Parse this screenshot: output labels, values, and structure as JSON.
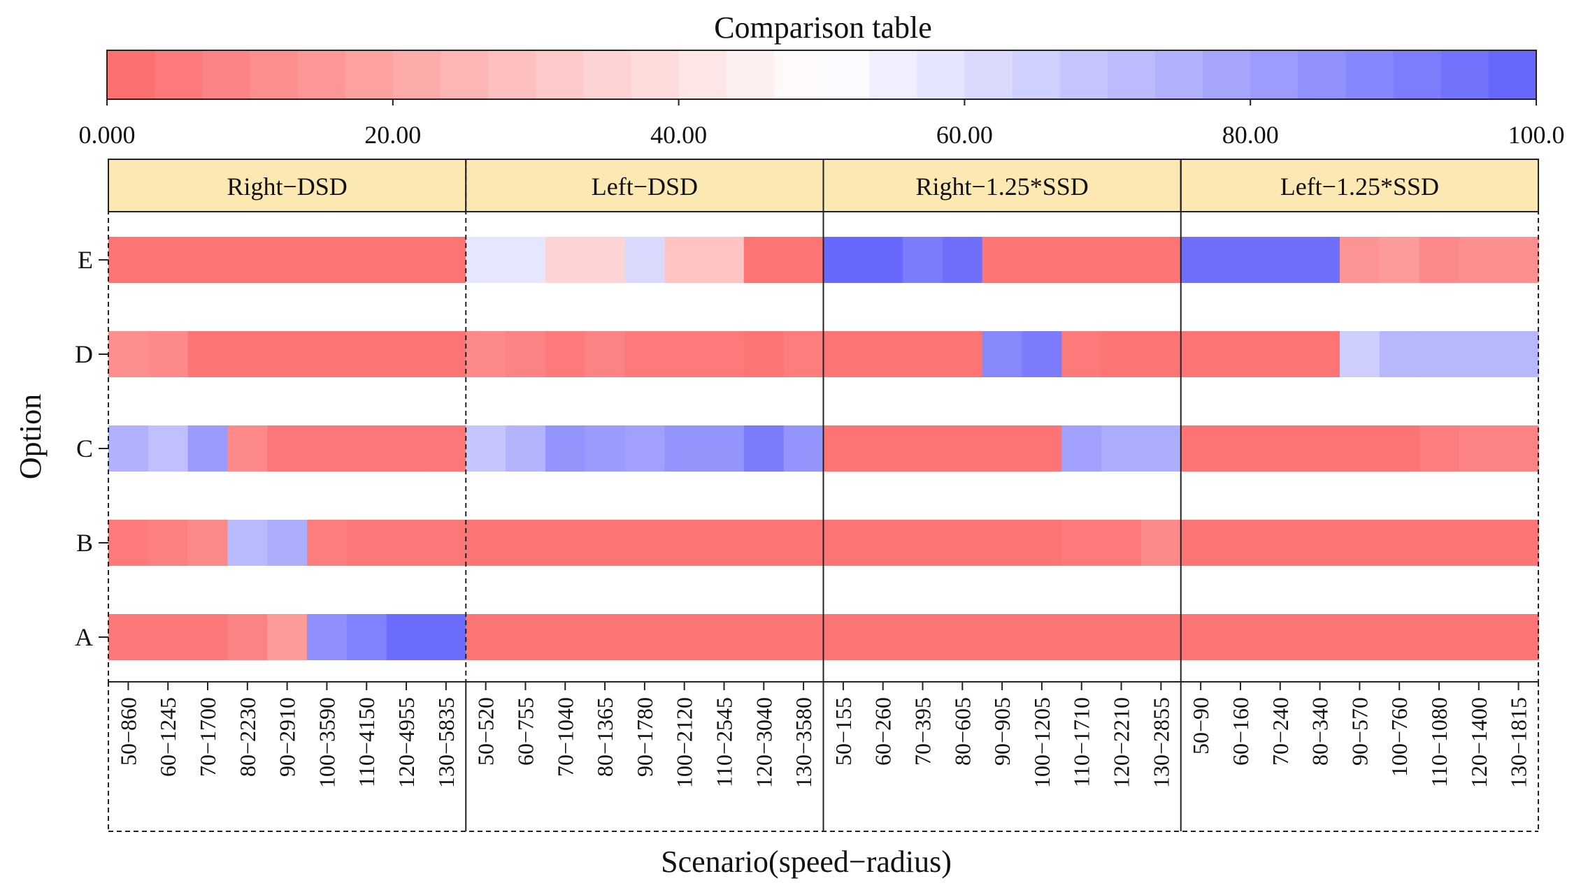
{
  "chart_data": {
    "type": "heatmap",
    "title": "Comparison table",
    "xlabel": "Scenario(speed−radius)",
    "ylabel": "Option",
    "colorbar": {
      "min": 0,
      "max": 100,
      "tick_values": [
        0,
        20,
        40,
        60,
        80,
        100
      ],
      "tick_labels": [
        "0.000",
        "20.00",
        "40.00",
        "60.00",
        "80.00",
        "100.0"
      ],
      "colors": {
        "low": "#fc6b6b",
        "mid": "#ffffff",
        "high": "#6262fc"
      },
      "steps": 30
    },
    "options": [
      "A",
      "B",
      "C",
      "D",
      "E"
    ],
    "panels": [
      {
        "name": "Right−DSD",
        "scenarios": [
          "50−860",
          "60−1245",
          "70−1700",
          "80−2230",
          "90−2910",
          "100−3590",
          "110−4150",
          "120−4955",
          "130−5835"
        ],
        "values": {
          "E": [
            3,
            3,
            3,
            3,
            3,
            3,
            3,
            3,
            3
          ],
          "D": [
            12,
            10,
            3,
            3,
            3,
            3,
            3,
            3,
            3
          ],
          "C": [
            75,
            70,
            82,
            10,
            4,
            4,
            4,
            4,
            4
          ],
          "B": [
            5,
            7,
            10,
            72,
            76,
            6,
            4,
            4,
            4
          ],
          "A": [
            4,
            4,
            4,
            8,
            16,
            86,
            90,
            97,
            97
          ]
        }
      },
      {
        "name": "Left−DSD",
        "scenarios": [
          "50−520",
          "60−755",
          "70−1040",
          "80−1365",
          "90−1780",
          "100−2120",
          "110−2545",
          "120−3040",
          "130−3580"
        ],
        "values": {
          "E": [
            58,
            58,
            35,
            35,
            62,
            30,
            30,
            3,
            3
          ],
          "D": [
            10,
            8,
            5,
            8,
            5,
            5,
            5,
            3,
            6
          ],
          "C": [
            68,
            74,
            84,
            82,
            80,
            84,
            84,
            92,
            84
          ],
          "B": [
            3,
            3,
            3,
            3,
            3,
            3,
            3,
            3,
            3
          ],
          "A": [
            3,
            3,
            3,
            3,
            3,
            3,
            3,
            3,
            3
          ]
        }
      },
      {
        "name": "Right−1.25*SSD",
        "scenarios": [
          "50−155",
          "60−260",
          "70−395",
          "80−605",
          "90−905",
          "100−1205",
          "110−1710",
          "120−2210",
          "130−2855"
        ],
        "values": {
          "E": [
            98,
            98,
            92,
            96,
            3,
            3,
            3,
            3,
            3
          ],
          "D": [
            3,
            3,
            3,
            3,
            88,
            92,
            5,
            3,
            3
          ],
          "C": [
            3,
            3,
            3,
            3,
            3,
            3,
            80,
            76,
            76
          ],
          "B": [
            3,
            3,
            3,
            3,
            3,
            3,
            5,
            5,
            10
          ],
          "A": [
            3,
            3,
            3,
            3,
            3,
            3,
            3,
            3,
            3
          ]
        }
      },
      {
        "name": "Left−1.25*SSD",
        "scenarios": [
          "50−90",
          "60−160",
          "70−240",
          "80−340",
          "90−570",
          "100−760",
          "110−1080",
          "120−1400",
          "130−1815"
        ],
        "values": {
          "E": [
            96,
            96,
            96,
            96,
            14,
            16,
            10,
            12,
            12
          ],
          "D": [
            3,
            3,
            3,
            3,
            66,
            73,
            73,
            73,
            73
          ],
          "C": [
            3,
            3,
            3,
            3,
            3,
            3,
            6,
            8,
            8
          ],
          "B": [
            3,
            3,
            3,
            3,
            3,
            3,
            3,
            3,
            3
          ],
          "A": [
            3,
            3,
            3,
            3,
            3,
            3,
            3,
            3,
            3
          ]
        }
      }
    ]
  }
}
